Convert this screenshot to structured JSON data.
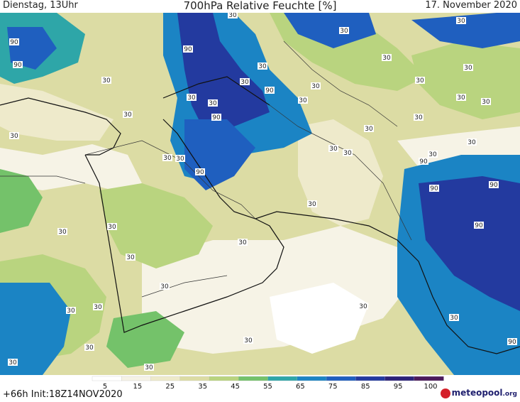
{
  "header": {
    "left": "Dienstag, 13Uhr",
    "title": "700hPa Relative Feuchte [%]",
    "right": "17. November 2020"
  },
  "footer": {
    "run_info": "+66h Init:18Z14NOV2020",
    "brand": "meteopool",
    "brand_suffix": ".org"
  },
  "legend": {
    "ticks": [
      "5",
      "15",
      "25",
      "35",
      "45",
      "55",
      "65",
      "75",
      "85",
      "95",
      "100"
    ],
    "colors": [
      "#ffffff",
      "#f6f3e6",
      "#eeeacb",
      "#dcdca4",
      "#b9d47f",
      "#74c26a",
      "#2ea6a8",
      "#1b84c4",
      "#1f5fbf",
      "#233a9f",
      "#2c2279",
      "#4b1a5b"
    ]
  },
  "map_labels": [
    "90",
    "90",
    "30",
    "30",
    "30",
    "30",
    "30",
    "90",
    "30",
    "30",
    "30",
    "90",
    "30",
    "30",
    "30",
    "30",
    "90",
    "30",
    "30",
    "30",
    "30",
    "30",
    "30",
    "30",
    "30",
    "30",
    "30",
    "90",
    "30",
    "90",
    "30",
    "90",
    "90",
    "30",
    "30",
    "30",
    "30",
    "30",
    "30",
    "30",
    "30",
    "30",
    "30",
    "30",
    "30",
    "90",
    "30",
    "30",
    "90",
    "30"
  ]
}
